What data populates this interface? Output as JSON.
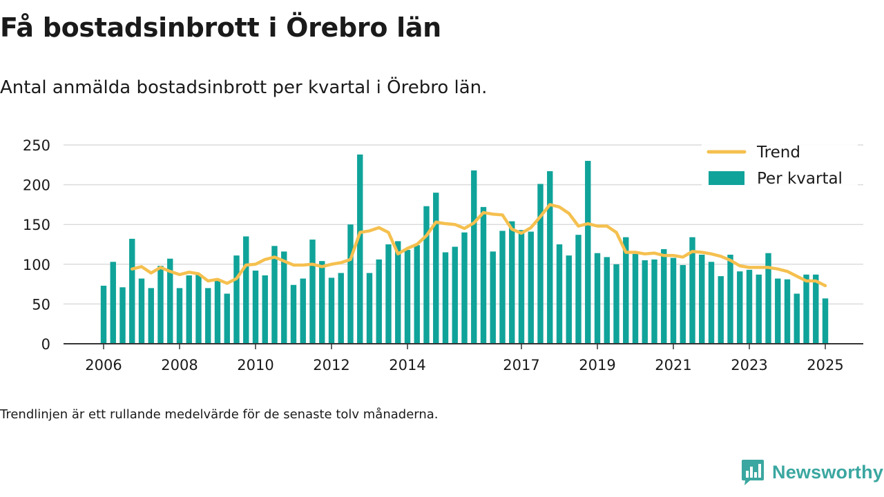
{
  "title": "Få bostadsinbrott i Örebro län",
  "subtitle": "Antal anmälda bostadsinbrott per kvartal i Örebro län.",
  "footnote": "Trendlinjen är ett rullande medelvärde för de senaste tolv månaderna.",
  "brand": {
    "name": "Newsworthy",
    "icon": "newsworthy-logo-icon"
  },
  "colors": {
    "bars": "#10a39a",
    "trend": "#f5c04f",
    "grid": "#dcdcdc",
    "axis": "#333333"
  },
  "chart_data": {
    "type": "bar",
    "xlabel": "",
    "ylabel": "",
    "ylim": [
      0,
      250
    ],
    "y_ticks": [
      0,
      50,
      100,
      150,
      200,
      250
    ],
    "x_tick_labels": [
      "2006",
      "2008",
      "2010",
      "2012",
      "2014",
      "2017",
      "2019",
      "2021",
      "2023",
      "2025"
    ],
    "grid": true,
    "legend": {
      "placement": "top-right",
      "entries": [
        {
          "label": "Trend",
          "kind": "line"
        },
        {
          "label": "Per kvartal",
          "kind": "bar"
        }
      ]
    },
    "series": [
      {
        "name": "Per kvartal",
        "kind": "bar",
        "values": [
          73,
          103,
          71,
          132,
          82,
          70,
          98,
          107,
          70,
          86,
          87,
          70,
          79,
          63,
          111,
          135,
          92,
          86,
          123,
          116,
          74,
          82,
          131,
          104,
          83,
          89,
          150,
          238,
          89,
          106,
          125,
          129,
          118,
          124,
          173,
          190,
          115,
          122,
          140,
          218,
          172,
          116,
          142,
          154,
          143,
          141,
          201,
          217,
          125,
          111,
          137,
          230,
          114,
          109,
          100,
          134,
          113,
          105,
          106,
          119,
          108,
          99,
          134,
          112,
          103,
          85,
          112,
          91,
          93,
          87,
          114,
          82,
          81,
          63,
          87,
          87,
          57
        ]
      },
      {
        "name": "Trend",
        "kind": "line",
        "values": [
          null,
          null,
          null,
          94,
          97,
          89,
          96,
          91,
          87,
          90,
          88,
          79,
          81,
          76,
          82,
          99,
          100,
          106,
          109,
          104,
          99,
          99,
          100,
          97,
          100,
          102,
          106,
          140,
          142,
          146,
          140,
          113,
          120,
          125,
          136,
          153,
          151,
          150,
          145,
          152,
          165,
          163,
          162,
          144,
          139,
          146,
          160,
          175,
          172,
          164,
          148,
          151,
          148,
          148,
          140,
          115,
          115,
          113,
          114,
          111,
          111,
          109,
          116,
          115,
          113,
          110,
          105,
          98,
          96,
          96,
          96,
          94,
          91,
          85,
          79,
          79,
          73
        ]
      }
    ]
  }
}
